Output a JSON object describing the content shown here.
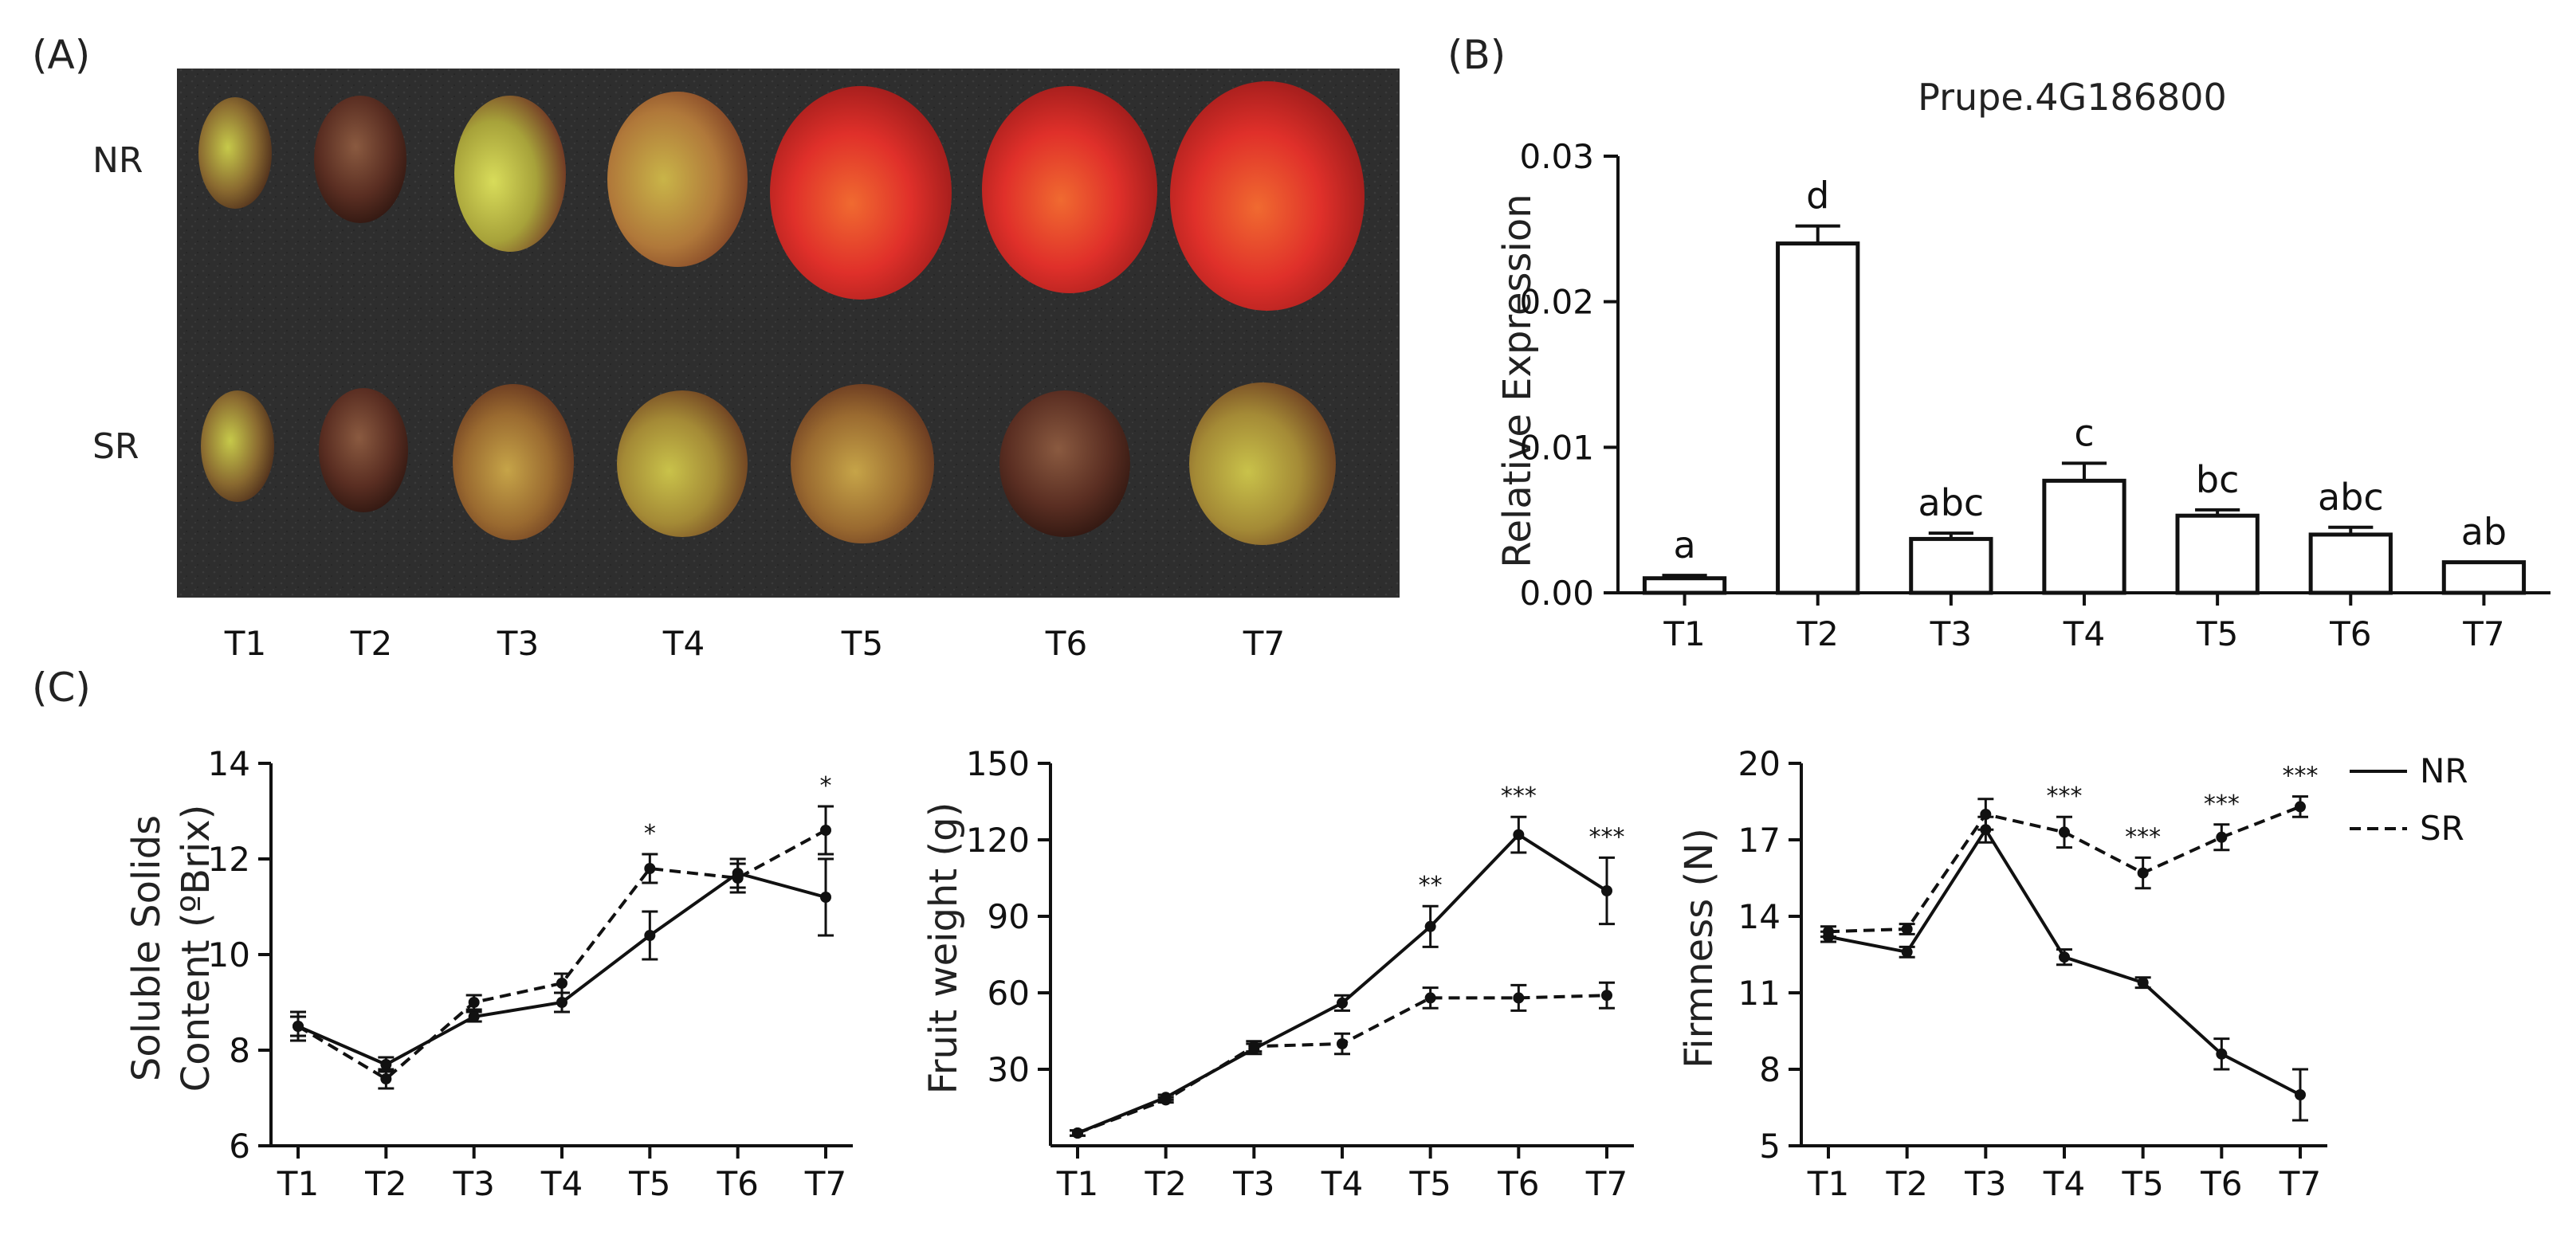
{
  "panel_labels": {
    "a": "(A)",
    "b": "(B)",
    "c": "(C)"
  },
  "photo": {
    "row_labels": [
      "NR",
      "SR"
    ],
    "time_labels": [
      "T1",
      "T2",
      "T3",
      "T4",
      "T5",
      "T6",
      "T7"
    ],
    "colors": {
      "background": "#2e2e2e",
      "nr_late": "#d8202a",
      "sr_late": "#9a7a2e",
      "early_green": "#b2c23a"
    }
  },
  "chart_data": [
    {
      "id": "B",
      "type": "bar",
      "title": "Prupe.4G186800",
      "xlabel": "",
      "ylabel": "Relative Expression",
      "categories": [
        "T1",
        "T2",
        "T3",
        "T4",
        "T5",
        "T6",
        "T7"
      ],
      "values": [
        0.001,
        0.024,
        0.0037,
        0.0077,
        0.0053,
        0.004,
        0.0021
      ],
      "errors": [
        0.0002,
        0.0012,
        0.0004,
        0.0012,
        0.0004,
        0.0005,
        0.0
      ],
      "labels": [
        "a",
        "d",
        "abc",
        "c",
        "bc",
        "abc",
        "ab"
      ],
      "ylim": [
        0,
        0.03
      ],
      "yticks": [
        0,
        0.01,
        0.02,
        0.03
      ],
      "ytick_labels": [
        "0.00",
        "0.01",
        "0.02",
        "0.03"
      ]
    },
    {
      "id": "C1",
      "type": "line",
      "xlabel": "",
      "ylabel": [
        "Soluble Solids",
        "Content (ºBrix)"
      ],
      "categories": [
        "T1",
        "T2",
        "T3",
        "T4",
        "T5",
        "T6",
        "T7"
      ],
      "ylim": [
        6,
        14
      ],
      "yticks": [
        6,
        8,
        10,
        12,
        14
      ],
      "ytick_labels": [
        "6",
        "8",
        "10",
        "12",
        "14"
      ],
      "series": [
        {
          "name": "NR",
          "style": "solid",
          "values": [
            8.5,
            7.7,
            8.7,
            9.0,
            10.4,
            11.7,
            11.2
          ],
          "errors": [
            0.2,
            0.15,
            0.1,
            0.2,
            0.5,
            0.3,
            0.8
          ]
        },
        {
          "name": "SR",
          "style": "dashed",
          "values": [
            8.5,
            7.4,
            9.0,
            9.4,
            11.8,
            11.6,
            12.6
          ],
          "errors": [
            0.3,
            0.2,
            0.15,
            0.2,
            0.3,
            0.3,
            0.5
          ]
        }
      ],
      "significance": [
        "",
        "",
        "",
        "",
        "*",
        "",
        "*"
      ]
    },
    {
      "id": "C2",
      "type": "line",
      "xlabel": "",
      "ylabel": "Fruit weight (g)",
      "categories": [
        "T1",
        "T2",
        "T3",
        "T4",
        "T5",
        "T6",
        "T7"
      ],
      "ylim": [
        0,
        150
      ],
      "yticks": [
        30,
        60,
        90,
        120,
        150
      ],
      "ytick_labels": [
        "30",
        "60",
        "90",
        "120",
        "150"
      ],
      "series": [
        {
          "name": "NR",
          "style": "solid",
          "values": [
            5,
            19,
            38,
            56,
            86,
            122,
            100
          ],
          "errors": [
            1,
            1,
            2,
            3,
            8,
            7,
            13
          ]
        },
        {
          "name": "SR",
          "style": "dashed",
          "values": [
            5,
            18,
            39,
            40,
            58,
            58,
            59
          ],
          "errors": [
            1,
            1,
            2,
            4,
            4,
            5,
            5
          ]
        }
      ],
      "significance": [
        "",
        "",
        "",
        "",
        "**",
        "***",
        "***"
      ]
    },
    {
      "id": "C3",
      "type": "line",
      "xlabel": "",
      "ylabel": "Firmness (N)",
      "categories": [
        "T1",
        "T2",
        "T3",
        "T4",
        "T5",
        "T6",
        "T7"
      ],
      "ylim": [
        5,
        20
      ],
      "yticks": [
        5,
        8,
        11,
        14,
        17,
        20
      ],
      "ytick_labels": [
        "5",
        "8",
        "11",
        "14",
        "17",
        "20"
      ],
      "series": [
        {
          "name": "NR",
          "style": "solid",
          "values": [
            13.2,
            12.6,
            17.4,
            12.4,
            11.4,
            8.6,
            7.0
          ],
          "errors": [
            0.2,
            0.2,
            0.5,
            0.3,
            0.2,
            0.6,
            1.0
          ]
        },
        {
          "name": "SR",
          "style": "dashed",
          "values": [
            13.4,
            13.5,
            18.0,
            17.3,
            15.7,
            17.1,
            18.3
          ],
          "errors": [
            0.2,
            0.2,
            0.6,
            0.6,
            0.6,
            0.5,
            0.4
          ]
        }
      ],
      "significance": [
        "",
        "",
        "",
        "***",
        "***",
        "***",
        "***"
      ],
      "legend": {
        "position": "right",
        "entries": [
          {
            "name": "NR",
            "style": "solid"
          },
          {
            "name": "SR",
            "style": "dashed"
          }
        ]
      }
    }
  ]
}
